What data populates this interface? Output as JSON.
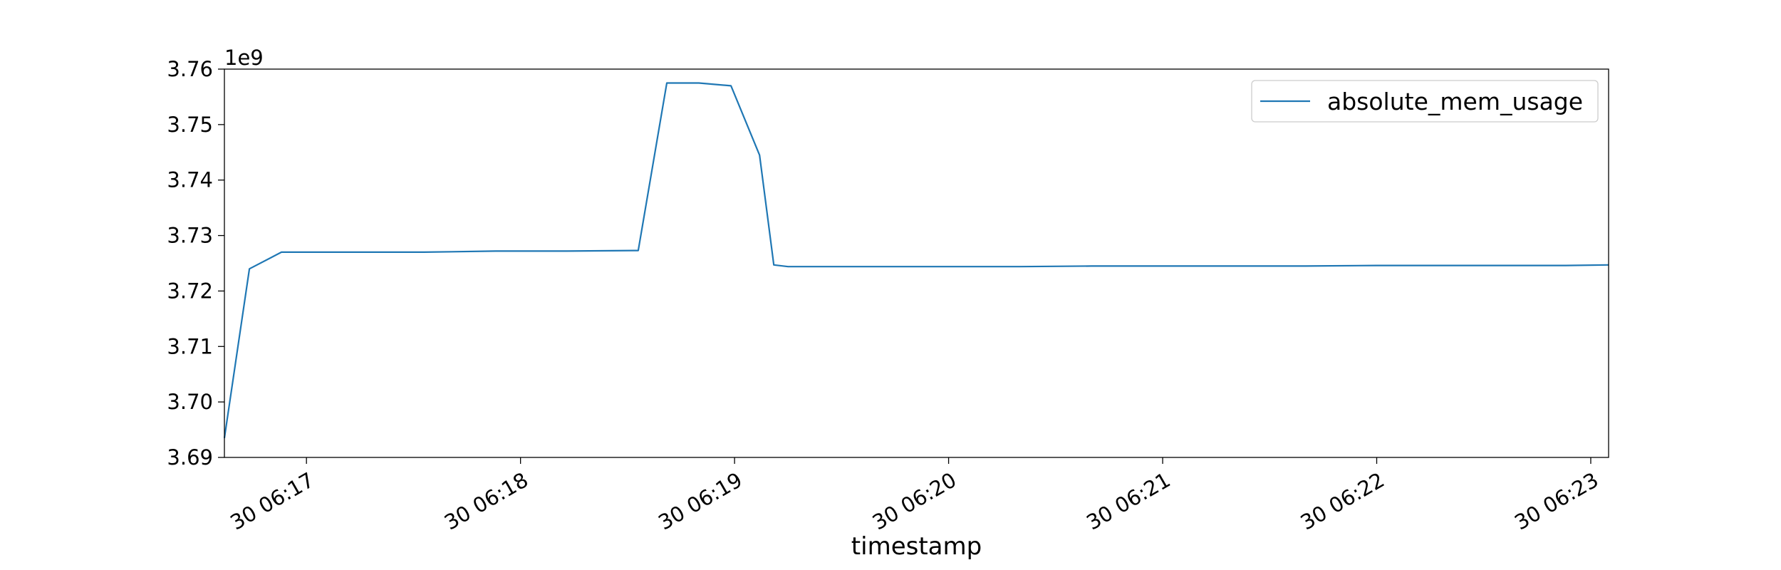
{
  "chart_data": {
    "type": "line",
    "xlabel": "timestamp",
    "ylabel": "",
    "y_offset_label": "1e9",
    "xlim": [
      "06:16:37",
      "06:23:05"
    ],
    "ylim": [
      3.69,
      3.76
    ],
    "y_scale_exponent": 9,
    "y_ticks": [
      3.69,
      3.7,
      3.71,
      3.72,
      3.73,
      3.74,
      3.75,
      3.76
    ],
    "y_tick_labels": [
      "3.69",
      "3.70",
      "3.71",
      "3.72",
      "3.73",
      "3.74",
      "3.75",
      "3.76"
    ],
    "x_ticks": [
      "06:17:00",
      "06:18:00",
      "06:19:00",
      "06:20:00",
      "06:21:00",
      "06:22:00",
      "06:23:00"
    ],
    "x_tick_labels": [
      "30 06:17",
      "30 06:18",
      "30 06:19",
      "30 06:20",
      "30 06:21",
      "30 06:22",
      "30 06:23"
    ],
    "grid": false,
    "legend_position": "top-right",
    "line_color": "#1f77b4",
    "series": [
      {
        "name": "absolute_mem_usage",
        "x": [
          "06:16:37",
          "06:16:44",
          "06:16:53",
          "06:17:13",
          "06:17:33",
          "06:17:53",
          "06:18:13",
          "06:18:33",
          "06:18:41",
          "06:18:50",
          "06:18:59",
          "06:19:07",
          "06:19:11",
          "06:19:15",
          "06:19:22",
          "06:19:40",
          "06:20:00",
          "06:20:20",
          "06:20:40",
          "06:21:00",
          "06:21:20",
          "06:21:40",
          "06:22:00",
          "06:22:20",
          "06:22:40",
          "06:22:53",
          "06:23:05"
        ],
        "y": [
          3.6935,
          3.724,
          3.727,
          3.727,
          3.727,
          3.7272,
          3.7272,
          3.7273,
          3.7575,
          3.7575,
          3.757,
          3.7445,
          3.7247,
          3.7244,
          3.7244,
          3.7244,
          3.7244,
          3.7244,
          3.7245,
          3.7245,
          3.7245,
          3.7245,
          3.7246,
          3.7246,
          3.7246,
          3.7246,
          3.7247
        ]
      }
    ]
  }
}
